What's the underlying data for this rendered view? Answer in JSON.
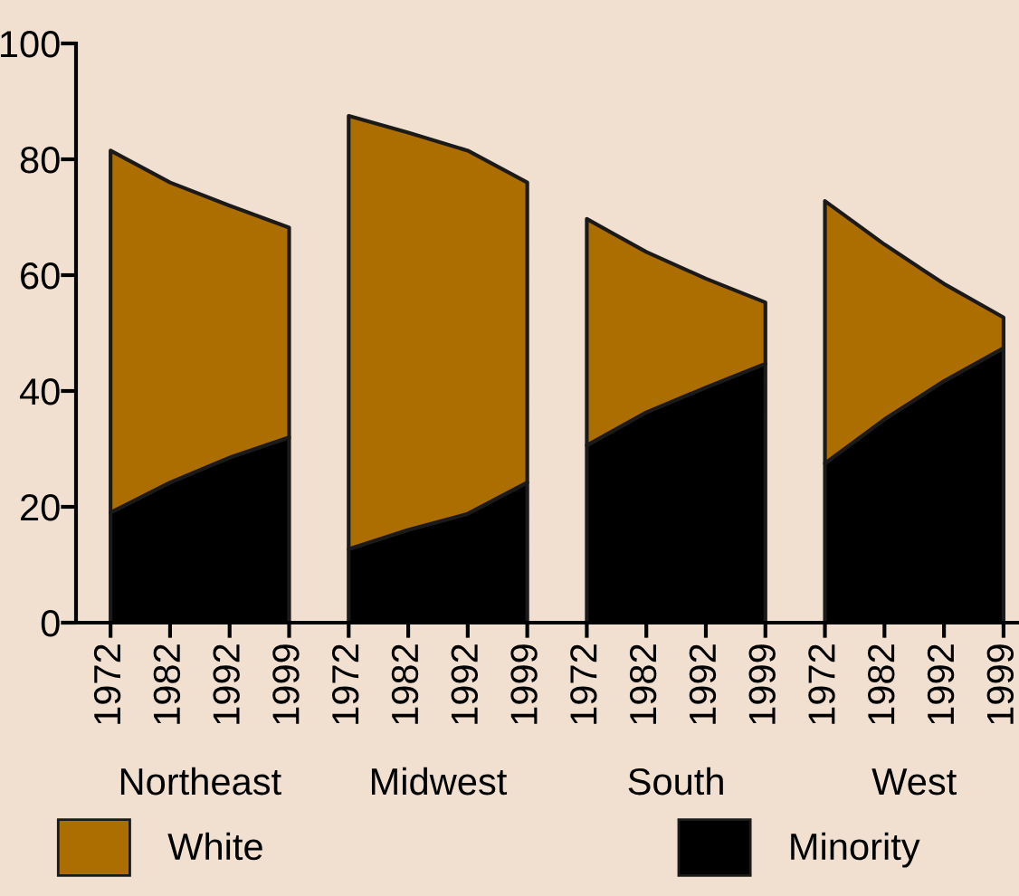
{
  "chart_data": {
    "type": "area",
    "stacked": true,
    "categories": [
      "1972",
      "1982",
      "1992",
      "1999",
      "1972",
      "1982",
      "1992",
      "1999",
      "1972",
      "1982",
      "1992",
      "1999",
      "1972",
      "1982",
      "1992",
      "1999"
    ],
    "series": [
      {
        "name": "Minority",
        "color": "#000000",
        "values": [
          19,
          24.2,
          28.5,
          32,
          12.7,
          16,
          18.8,
          24.2,
          30.6,
          36.3,
          40.6,
          44.7,
          27.5,
          35.1,
          41.7,
          47.4
        ]
      },
      {
        "name": "White",
        "color": "#ad6e00",
        "values": [
          62.5,
          51.8,
          43.5,
          36.2,
          74.8,
          68.6,
          62.7,
          51.8,
          39.1,
          27.7,
          18.8,
          10.6,
          45.3,
          30.2,
          16.8,
          5.3
        ]
      }
    ],
    "annotations": [
      "Northeast",
      "Midwest",
      "South",
      "West"
    ],
    "ylim": [
      0,
      100
    ],
    "yticks": [
      0,
      20,
      40,
      60,
      80,
      100
    ],
    "grid": false,
    "legend": "bottom"
  }
}
